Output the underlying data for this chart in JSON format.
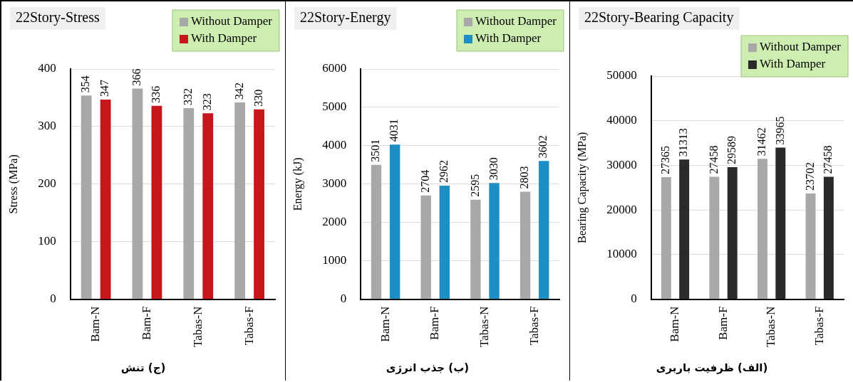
{
  "chart_data": [
    {
      "type": "bar",
      "title": "22Story-Stress",
      "ylabel": "Stress (MPa)",
      "categories": [
        "Bam-N",
        "Bam-F",
        "Tabas-N",
        "Tabas-F"
      ],
      "series": [
        {
          "name": "Without Damper",
          "color": "#a8a8a8",
          "values": [
            354,
            366,
            332,
            342
          ]
        },
        {
          "name": "With Damper",
          "color": "#c8161d",
          "values": [
            347,
            336,
            323,
            330
          ]
        }
      ],
      "ylim": [
        0,
        400
      ],
      "yticks": [
        0,
        100,
        200,
        300,
        400
      ],
      "grid": "y",
      "legend": "top right",
      "data_labels": true,
      "annotations": [
        "(ج) تنش"
      ]
    },
    {
      "type": "bar",
      "title": "22Story-Energy",
      "ylabel": "Energy (kJ)",
      "categories": [
        "Bam-N",
        "Bam-F",
        "Tabas-N",
        "Tabas-F"
      ],
      "series": [
        {
          "name": "Without Damper",
          "color": "#a8a8a8",
          "values": [
            3501,
            2704,
            2595,
            2803
          ]
        },
        {
          "name": "With Damper",
          "color": "#1e8fc4",
          "values": [
            4031,
            2962,
            3030,
            3602
          ]
        }
      ],
      "ylim": [
        0,
        6000
      ],
      "yticks": [
        0,
        1000,
        2000,
        3000,
        4000,
        5000,
        6000
      ],
      "grid": "y",
      "legend": "top right",
      "data_labels": true,
      "annotations": [
        "(ب) جذب انرژی"
      ]
    },
    {
      "type": "bar",
      "title": "22Story-Bearing Capacity",
      "ylabel": "Bearing Capacity (MPa)",
      "categories": [
        "Bam-N",
        "Bam-F",
        "Tabas-N",
        "Tabas-F"
      ],
      "series": [
        {
          "name": "Without Damper",
          "color": "#a8a8a8",
          "values": [
            27365,
            27458,
            31462,
            23702
          ]
        },
        {
          "name": "With Damper",
          "color": "#2a2a2a",
          "values": [
            31313,
            29589,
            33965,
            27458
          ]
        }
      ],
      "ylim": [
        0,
        50000
      ],
      "yticks": [
        0,
        10000,
        20000,
        30000,
        40000,
        50000
      ],
      "grid": "y",
      "legend": "top right",
      "data_labels": true,
      "annotations": [
        "(الف) ظرفیت باربری"
      ]
    }
  ]
}
